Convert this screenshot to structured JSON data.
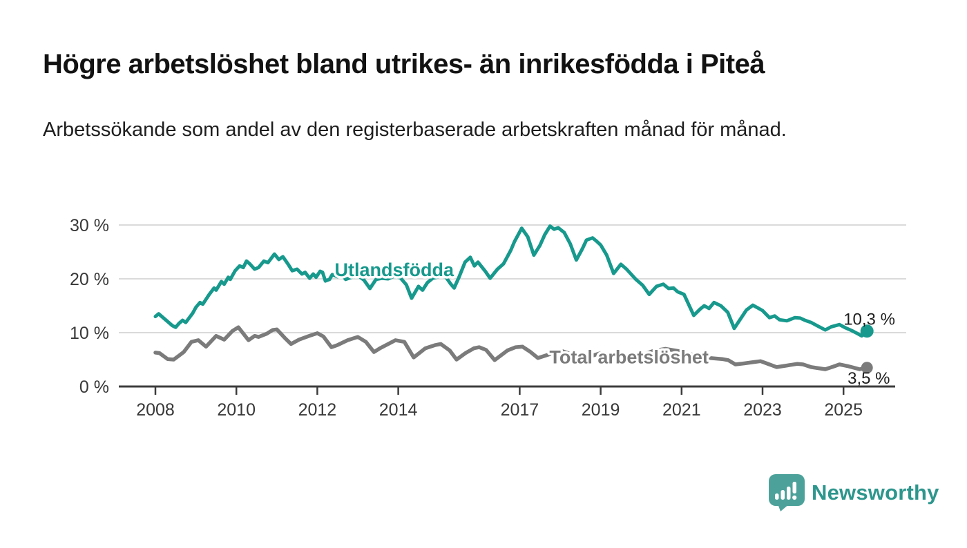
{
  "header": {
    "title": "Högre arbetslöshet bland utrikes- än inrikesfödda i Piteå",
    "subtitle": "Arbetssökande som andel av den registerbaserade arbetskraften månad för månad."
  },
  "footer": {
    "brand": "Newsworthy"
  },
  "colors": {
    "accent_teal": "#17998D",
    "line_gray": "#7B7B7B",
    "grid": "#DADADA",
    "axis": "#3C3C3C",
    "text_dark": "#1E1E1E",
    "logo_bg": "#4CA29A",
    "logo_text": "#2D968D"
  },
  "chart_data": {
    "type": "line",
    "title": "Högre arbetslöshet bland utrikes- än inrikesfödda i Piteå",
    "subtitle": "Arbetssökande som andel av den registerbaserade arbetskraften månad för månad.",
    "xlabel": "",
    "ylabel": "",
    "grid": "horizontal",
    "legend_position": "inline-labels",
    "xlim": [
      2007.1,
      2026.5
    ],
    "ylim": [
      0,
      31.4
    ],
    "x_ticks": [
      {
        "value": 2008,
        "label": "2008"
      },
      {
        "value": 2010,
        "label": "2010"
      },
      {
        "value": 2012,
        "label": "2012"
      },
      {
        "value": 2014,
        "label": "2014"
      },
      {
        "value": 2017,
        "label": "2017"
      },
      {
        "value": 2019,
        "label": "2019"
      },
      {
        "value": 2021,
        "label": "2021"
      },
      {
        "value": 2023,
        "label": "2023"
      },
      {
        "value": 2025,
        "label": "2025"
      }
    ],
    "y_ticks": [
      {
        "value": 0,
        "label": "0 %"
      },
      {
        "value": 10,
        "label": "10 %"
      },
      {
        "value": 20,
        "label": "20 %"
      },
      {
        "value": 30,
        "label": "30 %"
      }
    ],
    "annotations": [
      {
        "text": "10,3 %",
        "pos": [
          2025.0,
          11.5
        ],
        "anchor": "start"
      },
      {
        "text": "3,5 %",
        "pos": [
          2025.1,
          0.5
        ],
        "anchor": "start"
      }
    ],
    "series": [
      {
        "name": "Utlandsfödda",
        "color": "#17998D",
        "line_width": 5,
        "dot_radius": 9.5,
        "label_pos": [
          2013.9,
          20.5
        ],
        "end_value_label": "10,3 %",
        "points": [
          [
            2008.0,
            13.0
          ],
          [
            2008.08,
            13.5
          ],
          [
            2008.25,
            12.4
          ],
          [
            2008.42,
            11.3
          ],
          [
            2008.5,
            11.0
          ],
          [
            2008.58,
            11.7
          ],
          [
            2008.67,
            12.3
          ],
          [
            2008.75,
            11.9
          ],
          [
            2008.92,
            13.6
          ],
          [
            2009.0,
            14.7
          ],
          [
            2009.1,
            15.6
          ],
          [
            2009.17,
            15.3
          ],
          [
            2009.33,
            17.1
          ],
          [
            2009.45,
            18.3
          ],
          [
            2009.5,
            17.9
          ],
          [
            2009.63,
            19.5
          ],
          [
            2009.7,
            19.0
          ],
          [
            2009.8,
            20.3
          ],
          [
            2009.85,
            19.9
          ],
          [
            2009.97,
            21.5
          ],
          [
            2010.08,
            22.4
          ],
          [
            2010.17,
            22.1
          ],
          [
            2010.25,
            23.3
          ],
          [
            2010.33,
            22.8
          ],
          [
            2010.45,
            21.8
          ],
          [
            2010.55,
            22.1
          ],
          [
            2010.68,
            23.3
          ],
          [
            2010.78,
            23.0
          ],
          [
            2010.94,
            24.6
          ],
          [
            2011.05,
            23.6
          ],
          [
            2011.15,
            24.1
          ],
          [
            2011.28,
            22.7
          ],
          [
            2011.38,
            21.5
          ],
          [
            2011.5,
            21.8
          ],
          [
            2011.62,
            20.9
          ],
          [
            2011.7,
            21.2
          ],
          [
            2011.81,
            20.1
          ],
          [
            2011.9,
            20.9
          ],
          [
            2011.97,
            20.3
          ],
          [
            2012.07,
            21.4
          ],
          [
            2012.13,
            21.2
          ],
          [
            2012.2,
            19.6
          ],
          [
            2012.3,
            19.9
          ],
          [
            2012.37,
            20.8
          ],
          [
            2012.5,
            20.4
          ],
          [
            2012.6,
            20.9
          ],
          [
            2012.7,
            19.9
          ],
          [
            2012.85,
            20.3
          ],
          [
            2013.0,
            20.6
          ],
          [
            2013.15,
            19.8
          ],
          [
            2013.3,
            18.2
          ],
          [
            2013.45,
            19.9
          ],
          [
            2013.6,
            20.1
          ],
          [
            2013.75,
            20.0
          ],
          [
            2013.9,
            20.5
          ],
          [
            2014.05,
            20.2
          ],
          [
            2014.2,
            18.9
          ],
          [
            2014.33,
            16.4
          ],
          [
            2014.5,
            18.6
          ],
          [
            2014.6,
            17.9
          ],
          [
            2014.72,
            19.3
          ],
          [
            2014.85,
            20.1
          ],
          [
            2015.0,
            20.4
          ],
          [
            2015.15,
            20.6
          ],
          [
            2015.3,
            19.0
          ],
          [
            2015.38,
            18.3
          ],
          [
            2015.5,
            20.3
          ],
          [
            2015.65,
            23.1
          ],
          [
            2015.78,
            24.0
          ],
          [
            2015.88,
            22.4
          ],
          [
            2015.97,
            23.1
          ],
          [
            2016.15,
            21.4
          ],
          [
            2016.27,
            20.1
          ],
          [
            2016.45,
            21.8
          ],
          [
            2016.6,
            22.8
          ],
          [
            2016.78,
            25.3
          ],
          [
            2016.87,
            26.9
          ],
          [
            2017.05,
            29.4
          ],
          [
            2017.2,
            27.8
          ],
          [
            2017.35,
            24.4
          ],
          [
            2017.5,
            26.2
          ],
          [
            2017.62,
            28.2
          ],
          [
            2017.75,
            29.8
          ],
          [
            2017.85,
            29.2
          ],
          [
            2017.95,
            29.5
          ],
          [
            2018.1,
            28.6
          ],
          [
            2018.25,
            26.5
          ],
          [
            2018.4,
            23.5
          ],
          [
            2018.55,
            25.6
          ],
          [
            2018.65,
            27.2
          ],
          [
            2018.8,
            27.6
          ],
          [
            2018.9,
            27.0
          ],
          [
            2019.0,
            26.3
          ],
          [
            2019.15,
            24.4
          ],
          [
            2019.32,
            21.0
          ],
          [
            2019.5,
            22.7
          ],
          [
            2019.64,
            21.8
          ],
          [
            2019.87,
            19.9
          ],
          [
            2020.04,
            18.8
          ],
          [
            2020.2,
            17.1
          ],
          [
            2020.38,
            18.6
          ],
          [
            2020.55,
            19.0
          ],
          [
            2020.68,
            18.2
          ],
          [
            2020.8,
            18.3
          ],
          [
            2020.9,
            17.6
          ],
          [
            2021.06,
            17.1
          ],
          [
            2021.3,
            13.2
          ],
          [
            2021.46,
            14.4
          ],
          [
            2021.56,
            15.0
          ],
          [
            2021.68,
            14.5
          ],
          [
            2021.8,
            15.6
          ],
          [
            2021.97,
            15.0
          ],
          [
            2022.14,
            13.8
          ],
          [
            2022.3,
            10.8
          ],
          [
            2022.45,
            12.5
          ],
          [
            2022.6,
            14.2
          ],
          [
            2022.76,
            15.1
          ],
          [
            2022.88,
            14.6
          ],
          [
            2023.0,
            14.1
          ],
          [
            2023.17,
            12.8
          ],
          [
            2023.3,
            13.1
          ],
          [
            2023.42,
            12.4
          ],
          [
            2023.6,
            12.2
          ],
          [
            2023.8,
            12.8
          ],
          [
            2023.93,
            12.7
          ],
          [
            2024.05,
            12.3
          ],
          [
            2024.2,
            11.9
          ],
          [
            2024.35,
            11.3
          ],
          [
            2024.55,
            10.5
          ],
          [
            2024.7,
            11.1
          ],
          [
            2024.9,
            11.5
          ],
          [
            2025.05,
            10.9
          ],
          [
            2025.2,
            10.4
          ],
          [
            2025.33,
            9.9
          ],
          [
            2025.45,
            9.4
          ],
          [
            2025.58,
            10.3
          ]
        ]
      },
      {
        "name": "Total arbetslöshet",
        "color": "#7B7B7B",
        "line_width": 5.5,
        "dot_radius": 8.5,
        "label_pos": [
          2019.7,
          4.3
        ],
        "end_value_label": "3,5 %",
        "points": [
          [
            2008.0,
            6.3
          ],
          [
            2008.1,
            6.2
          ],
          [
            2008.3,
            5.1
          ],
          [
            2008.45,
            5.0
          ],
          [
            2008.56,
            5.6
          ],
          [
            2008.7,
            6.4
          ],
          [
            2008.89,
            8.3
          ],
          [
            2009.06,
            8.6
          ],
          [
            2009.25,
            7.4
          ],
          [
            2009.5,
            9.4
          ],
          [
            2009.7,
            8.7
          ],
          [
            2009.9,
            10.3
          ],
          [
            2010.05,
            11.0
          ],
          [
            2010.3,
            8.6
          ],
          [
            2010.45,
            9.4
          ],
          [
            2010.55,
            9.2
          ],
          [
            2010.75,
            9.8
          ],
          [
            2010.9,
            10.5
          ],
          [
            2011.0,
            10.6
          ],
          [
            2011.2,
            9.0
          ],
          [
            2011.35,
            7.9
          ],
          [
            2011.55,
            8.7
          ],
          [
            2011.8,
            9.4
          ],
          [
            2012.0,
            9.9
          ],
          [
            2012.15,
            9.3
          ],
          [
            2012.35,
            7.3
          ],
          [
            2012.5,
            7.7
          ],
          [
            2012.75,
            8.6
          ],
          [
            2013.0,
            9.2
          ],
          [
            2013.2,
            8.3
          ],
          [
            2013.4,
            6.4
          ],
          [
            2013.55,
            7.1
          ],
          [
            2013.75,
            7.9
          ],
          [
            2013.93,
            8.6
          ],
          [
            2014.15,
            8.3
          ],
          [
            2014.38,
            5.4
          ],
          [
            2014.67,
            7.1
          ],
          [
            2014.92,
            7.7
          ],
          [
            2015.05,
            7.9
          ],
          [
            2015.27,
            6.7
          ],
          [
            2015.44,
            5.0
          ],
          [
            2015.66,
            6.2
          ],
          [
            2015.87,
            7.1
          ],
          [
            2016.0,
            7.3
          ],
          [
            2016.17,
            6.8
          ],
          [
            2016.38,
            4.9
          ],
          [
            2016.7,
            6.7
          ],
          [
            2016.9,
            7.3
          ],
          [
            2017.07,
            7.4
          ],
          [
            2017.27,
            6.4
          ],
          [
            2017.45,
            5.3
          ],
          [
            2017.7,
            5.9
          ],
          [
            2018.0,
            6.7
          ],
          [
            2018.2,
            6.2
          ],
          [
            2018.45,
            4.8
          ],
          [
            2018.7,
            5.5
          ],
          [
            2019.0,
            6.2
          ],
          [
            2019.2,
            5.8
          ],
          [
            2019.45,
            4.6
          ],
          [
            2019.7,
            5.2
          ],
          [
            2020.0,
            5.8
          ],
          [
            2020.3,
            6.6
          ],
          [
            2020.6,
            7.0
          ],
          [
            2020.9,
            6.6
          ],
          [
            2021.1,
            6.3
          ],
          [
            2021.4,
            5.6
          ],
          [
            2021.7,
            5.3
          ],
          [
            2022.0,
            5.1
          ],
          [
            2022.15,
            4.9
          ],
          [
            2022.33,
            4.1
          ],
          [
            2022.55,
            4.3
          ],
          [
            2022.75,
            4.5
          ],
          [
            2022.95,
            4.7
          ],
          [
            2023.1,
            4.3
          ],
          [
            2023.35,
            3.6
          ],
          [
            2023.6,
            3.9
          ],
          [
            2023.86,
            4.2
          ],
          [
            2024.0,
            4.1
          ],
          [
            2024.2,
            3.6
          ],
          [
            2024.55,
            3.2
          ],
          [
            2024.75,
            3.7
          ],
          [
            2024.9,
            4.1
          ],
          [
            2025.1,
            3.8
          ],
          [
            2025.25,
            3.5
          ],
          [
            2025.4,
            3.2
          ],
          [
            2025.58,
            3.5
          ]
        ]
      }
    ]
  }
}
